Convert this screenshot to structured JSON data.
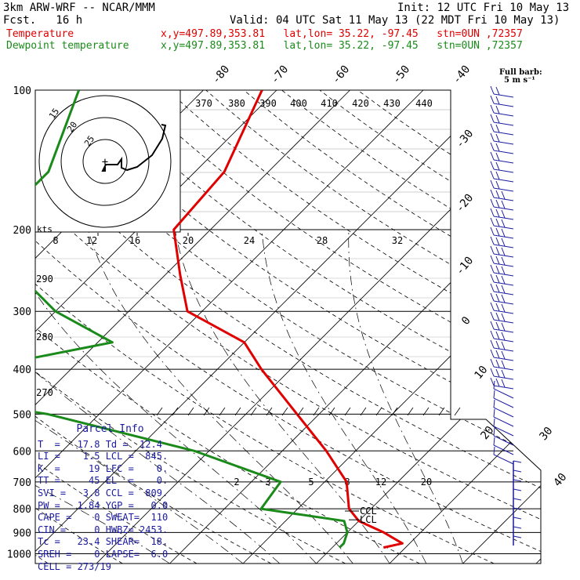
{
  "header": {
    "model_line": "3km ARW-WRF -- NCAR/MMM",
    "init_line": "Init: 12 UTC Fri 10 May 13",
    "fcst_line": "Fcst.   16 h",
    "valid_line": "Valid: 04 UTC Sat 11 May 13 (22 MDT Fri 10 May 13)",
    "temp_label": "Temperature",
    "temp_info": "x,y=497.89,353.81   lat,lon= 35.22, -97.45   stn=0UN ,72357",
    "dew_label": "Dewpoint temperature",
    "dew_info": "x,y=497.89,353.81   lat,lon= 35.22, -97.45   stn=0UN ,72357",
    "barb_note": "Full barb:",
    "barb_note2": "5 m s⁻¹"
  },
  "parcel_info": {
    "title": "Parcel Info",
    "rows": [
      "T  =   17.8 Td =  12.4",
      "LI =    1.5 LCL =  845.",
      "K  =     19 LFC =    0.",
      "TT =     45 EL  =    0.",
      "SVI =   3.8 CCL =  809.",
      "PW =   1.84 YGP =   0.0",
      "CAPE =    0 SWEAT=  110",
      "CIN =     0 HWBZ= 2453.",
      "Tc =   23.4 SHEAR=  18.",
      "SREH =    0 LAPSE=  6.0",
      "CELL = 273/19"
    ]
  },
  "chart_data": {
    "type": "line",
    "title": "",
    "pressure_levels": [
      "100",
      "200",
      "300",
      "400",
      "500",
      "600",
      "700",
      "800",
      "900",
      "1000"
    ],
    "temp_axis_labels": [
      "-80",
      "-70",
      "-60",
      "-50",
      "-40",
      "-30",
      "-20",
      "-10",
      "0",
      "10",
      "20",
      "30",
      "40"
    ],
    "theta_e_labels": [
      "370",
      "380",
      "390",
      "400",
      "410",
      "420",
      "430",
      "440"
    ],
    "theta_labels": [
      "290",
      "280",
      "270"
    ],
    "mixing_ratio_labels": [
      "2",
      "3",
      "5",
      "8",
      "12",
      "20"
    ],
    "hodo_speed_labels": [
      "8",
      "12",
      "16",
      "20",
      "24",
      "28",
      "32"
    ],
    "hodo_ring_labels": [
      "15",
      "20",
      "25"
    ],
    "hodo_units": "kts",
    "annotations": [
      "CCL",
      "LCL"
    ],
    "series": [
      {
        "name": "Temperature",
        "color": "#e00000",
        "values": [
          [
            100,
            -62
          ],
          [
            150,
            -56
          ],
          [
            200,
            -55
          ],
          [
            250,
            -48
          ],
          [
            300,
            -42
          ],
          [
            350,
            -30
          ],
          [
            400,
            -24
          ],
          [
            500,
            -13
          ],
          [
            600,
            -4
          ],
          [
            700,
            3
          ],
          [
            800,
            7
          ],
          [
            850,
            10
          ],
          [
            900,
            15
          ],
          [
            950,
            19
          ],
          [
            970,
            17
          ]
        ]
      },
      {
        "name": "Dewpoint temperature",
        "color": "#1a8a1a",
        "values": [
          [
            100,
            -87
          ],
          [
            150,
            -80
          ],
          [
            200,
            -80
          ],
          [
            250,
            -70
          ],
          [
            300,
            -60
          ],
          [
            350,
            -48
          ],
          [
            400,
            -63
          ],
          [
            450,
            -68
          ],
          [
            500,
            -47
          ],
          [
            600,
            -22
          ],
          [
            700,
            -6
          ],
          [
            800,
            -5
          ],
          [
            850,
            8
          ],
          [
            900,
            10
          ],
          [
            950,
            11
          ],
          [
            970,
            11
          ]
        ]
      }
    ]
  }
}
